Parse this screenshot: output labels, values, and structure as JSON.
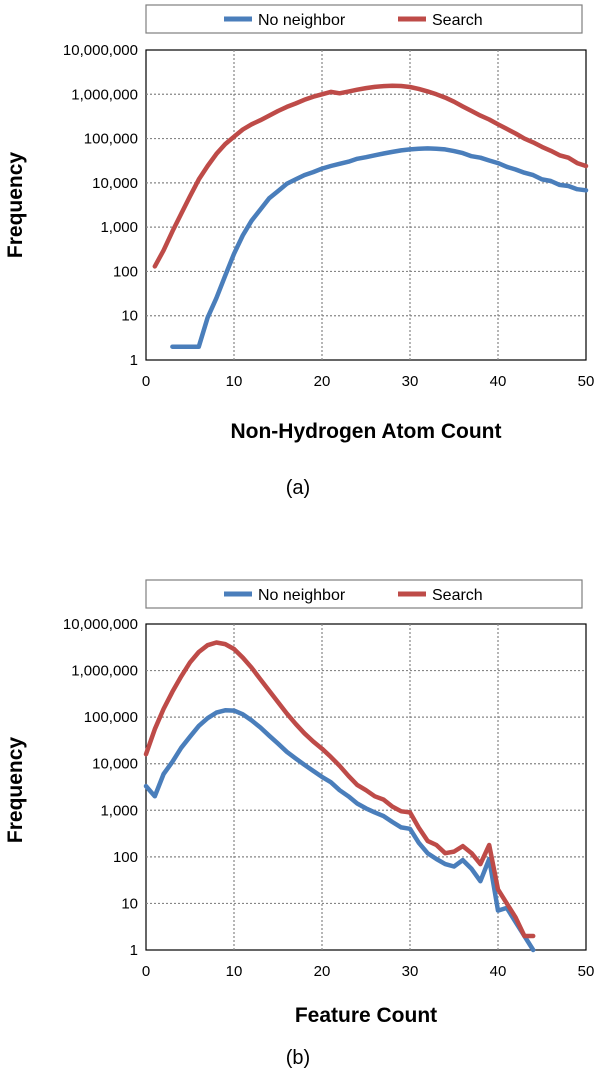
{
  "chart_data": [
    {
      "type": "line",
      "caption": "(a)",
      "xlabel": "Non-Hydrogen Atom Count",
      "ylabel": "Frequency",
      "xlim": [
        0,
        50
      ],
      "ylim": [
        1,
        10000000
      ],
      "yscale": "log",
      "grid": true,
      "legend_position": "top",
      "x_ticks": [
        "0",
        "10",
        "20",
        "30",
        "40",
        "50"
      ],
      "y_ticks": [
        "1",
        "10",
        "100",
        "1,000",
        "10,000",
        "100,000",
        "1,000,000",
        "10,000,000"
      ],
      "series": [
        {
          "name": "No neighbor",
          "color": "#4a7ebb",
          "points": [
            [
              3,
              2
            ],
            [
              4,
              2
            ],
            [
              5,
              2
            ],
            [
              6,
              2
            ],
            [
              7,
              9
            ],
            [
              8,
              25
            ],
            [
              9,
              80
            ],
            [
              10,
              250
            ],
            [
              11,
              650
            ],
            [
              12,
              1400
            ],
            [
              13,
              2500
            ],
            [
              14,
              4500
            ],
            [
              15,
              6500
            ],
            [
              16,
              9500
            ],
            [
              17,
              12000
            ],
            [
              18,
              15000
            ],
            [
              19,
              17500
            ],
            [
              20,
              21000
            ],
            [
              21,
              24000
            ],
            [
              22,
              27000
            ],
            [
              23,
              30000
            ],
            [
              24,
              35000
            ],
            [
              25,
              38000
            ],
            [
              26,
              42000
            ],
            [
              27,
              46000
            ],
            [
              28,
              50000
            ],
            [
              29,
              54000
            ],
            [
              30,
              57000
            ],
            [
              31,
              59000
            ],
            [
              32,
              60000
            ],
            [
              33,
              59000
            ],
            [
              34,
              57000
            ],
            [
              35,
              52000
            ],
            [
              36,
              47000
            ],
            [
              37,
              40000
            ],
            [
              38,
              37000
            ],
            [
              39,
              32000
            ],
            [
              40,
              28000
            ],
            [
              41,
              23000
            ],
            [
              42,
              20000
            ],
            [
              43,
              17000
            ],
            [
              44,
              15000
            ],
            [
              45,
              12000
            ],
            [
              46,
              11000
            ],
            [
              47,
              9000
            ],
            [
              48,
              8500
            ],
            [
              49,
              7200
            ],
            [
              50,
              6800
            ]
          ]
        },
        {
          "name": "Search",
          "color": "#be4b48",
          "points": [
            [
              1,
              130
            ],
            [
              2,
              300
            ],
            [
              3,
              800
            ],
            [
              4,
              2000
            ],
            [
              5,
              5000
            ],
            [
              6,
              12000
            ],
            [
              7,
              24000
            ],
            [
              8,
              45000
            ],
            [
              9,
              75000
            ],
            [
              10,
              110000
            ],
            [
              11,
              160000
            ],
            [
              12,
              210000
            ],
            [
              13,
              260000
            ],
            [
              14,
              330000
            ],
            [
              15,
              420000
            ],
            [
              16,
              520000
            ],
            [
              17,
              620000
            ],
            [
              18,
              750000
            ],
            [
              19,
              880000
            ],
            [
              20,
              1000000
            ],
            [
              21,
              1130000
            ],
            [
              22,
              1050000
            ],
            [
              23,
              1150000
            ],
            [
              24,
              1270000
            ],
            [
              25,
              1380000
            ],
            [
              26,
              1470000
            ],
            [
              27,
              1530000
            ],
            [
              28,
              1560000
            ],
            [
              29,
              1540000
            ],
            [
              30,
              1460000
            ],
            [
              31,
              1320000
            ],
            [
              32,
              1160000
            ],
            [
              33,
              1000000
            ],
            [
              34,
              840000
            ],
            [
              35,
              680000
            ],
            [
              36,
              530000
            ],
            [
              37,
              420000
            ],
            [
              38,
              330000
            ],
            [
              39,
              270000
            ],
            [
              40,
              210000
            ],
            [
              41,
              165000
            ],
            [
              42,
              130000
            ],
            [
              43,
              100000
            ],
            [
              44,
              82000
            ],
            [
              45,
              65000
            ],
            [
              46,
              53000
            ],
            [
              47,
              42000
            ],
            [
              48,
              37000
            ],
            [
              49,
              28000
            ],
            [
              50,
              24000
            ]
          ]
        }
      ]
    },
    {
      "type": "line",
      "caption": "(b)",
      "xlabel": "Feature Count",
      "ylabel": "Frequency",
      "xlim": [
        0,
        50
      ],
      "ylim": [
        1,
        10000000
      ],
      "yscale": "log",
      "grid": true,
      "legend_position": "top",
      "x_ticks": [
        "0",
        "10",
        "20",
        "30",
        "40",
        "50"
      ],
      "y_ticks": [
        "1",
        "10",
        "100",
        "1,000",
        "10,000",
        "100,000",
        "1,000,000",
        "10,000,000"
      ],
      "series": [
        {
          "name": "No neighbor",
          "color": "#4a7ebb",
          "points": [
            [
              0,
              3300
            ],
            [
              1,
              2000
            ],
            [
              2,
              6000
            ],
            [
              3,
              11000
            ],
            [
              4,
              22000
            ],
            [
              5,
              38000
            ],
            [
              6,
              65000
            ],
            [
              7,
              95000
            ],
            [
              8,
              125000
            ],
            [
              9,
              140000
            ],
            [
              10,
              138000
            ],
            [
              11,
              115000
            ],
            [
              12,
              85000
            ],
            [
              13,
              60000
            ],
            [
              14,
              40000
            ],
            [
              15,
              27000
            ],
            [
              16,
              18000
            ],
            [
              17,
              13000
            ],
            [
              18,
              9500
            ],
            [
              19,
              7000
            ],
            [
              20,
              5200
            ],
            [
              21,
              4000
            ],
            [
              22,
              2700
            ],
            [
              23,
              2000
            ],
            [
              24,
              1400
            ],
            [
              25,
              1100
            ],
            [
              26,
              900
            ],
            [
              27,
              750
            ],
            [
              28,
              560
            ],
            [
              29,
              430
            ],
            [
              30,
              400
            ],
            [
              31,
              200
            ],
            [
              32,
              120
            ],
            [
              33,
              90
            ],
            [
              34,
              70
            ],
            [
              35,
              62
            ],
            [
              36,
              85
            ],
            [
              37,
              55
            ],
            [
              38,
              30
            ],
            [
              39,
              90
            ],
            [
              40,
              7
            ],
            [
              41,
              8
            ],
            [
              42,
              4
            ],
            [
              43,
              2
            ],
            [
              44,
              1
            ]
          ]
        },
        {
          "name": "Search",
          "color": "#be4b48",
          "points": [
            [
              0,
              16000
            ],
            [
              1,
              55000
            ],
            [
              2,
              150000
            ],
            [
              3,
              350000
            ],
            [
              4,
              750000
            ],
            [
              5,
              1500000
            ],
            [
              6,
              2500000
            ],
            [
              7,
              3500000
            ],
            [
              8,
              4000000
            ],
            [
              9,
              3700000
            ],
            [
              10,
              2900000
            ],
            [
              11,
              1900000
            ],
            [
              12,
              1150000
            ],
            [
              13,
              650000
            ],
            [
              14,
              370000
            ],
            [
              15,
              210000
            ],
            [
              16,
              120000
            ],
            [
              17,
              72000
            ],
            [
              18,
              45000
            ],
            [
              19,
              30000
            ],
            [
              20,
              21000
            ],
            [
              21,
              14000
            ],
            [
              22,
              9000
            ],
            [
              23,
              5500
            ],
            [
              24,
              3500
            ],
            [
              25,
              2700
            ],
            [
              26,
              2000
            ],
            [
              27,
              1700
            ],
            [
              28,
              1200
            ],
            [
              29,
              950
            ],
            [
              30,
              900
            ],
            [
              31,
              420
            ],
            [
              32,
              220
            ],
            [
              33,
              180
            ],
            [
              34,
              120
            ],
            [
              35,
              130
            ],
            [
              36,
              170
            ],
            [
              37,
              120
            ],
            [
              38,
              70
            ],
            [
              39,
              180
            ],
            [
              40,
              20
            ],
            [
              41,
              10
            ],
            [
              42,
              5
            ],
            [
              43,
              2
            ],
            [
              44,
              2
            ]
          ]
        }
      ]
    }
  ]
}
